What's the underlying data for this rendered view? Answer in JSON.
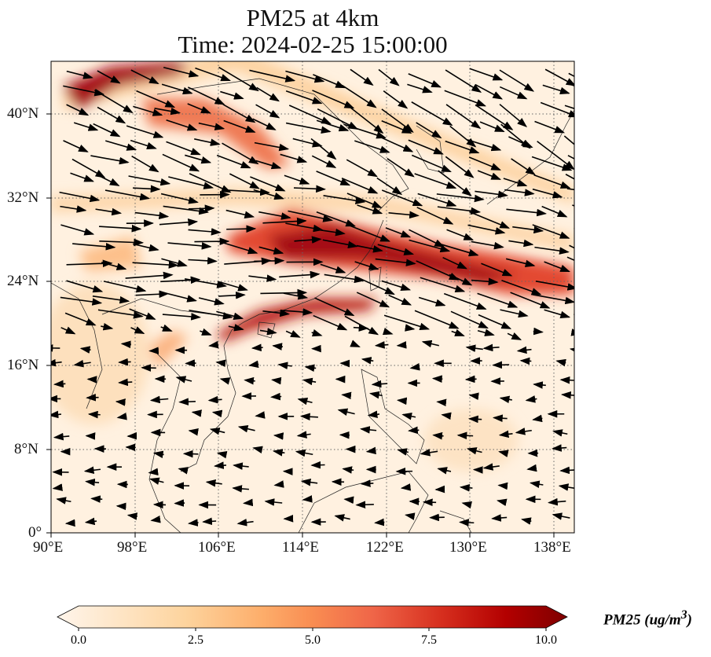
{
  "title": {
    "line1": "PM25 at 4km",
    "line2": "Time: 2024-02-25 15:00:00"
  },
  "map": {
    "lon_range": [
      90,
      140
    ],
    "lat_range": [
      0,
      45
    ],
    "x_ticks": [
      "90°E",
      "98°E",
      "106°E",
      "114°E",
      "122°E",
      "130°E",
      "138°E"
    ],
    "y_ticks": [
      "0°",
      "8°N",
      "16°N",
      "24°N",
      "32°N",
      "40°N"
    ]
  },
  "colorbar": {
    "label": "PM25 (ug/m",
    "label_sup": "3",
    "label_end": ")",
    "ticks": [
      "0.0",
      "2.5",
      "5.0",
      "7.5",
      "10.0"
    ],
    "range": [
      0,
      10
    ],
    "colors": [
      "#fff5eb",
      "#fdd49e",
      "#fdae6b",
      "#f16913",
      "#d94801",
      "#a50f15",
      "#67000d"
    ]
  }
}
